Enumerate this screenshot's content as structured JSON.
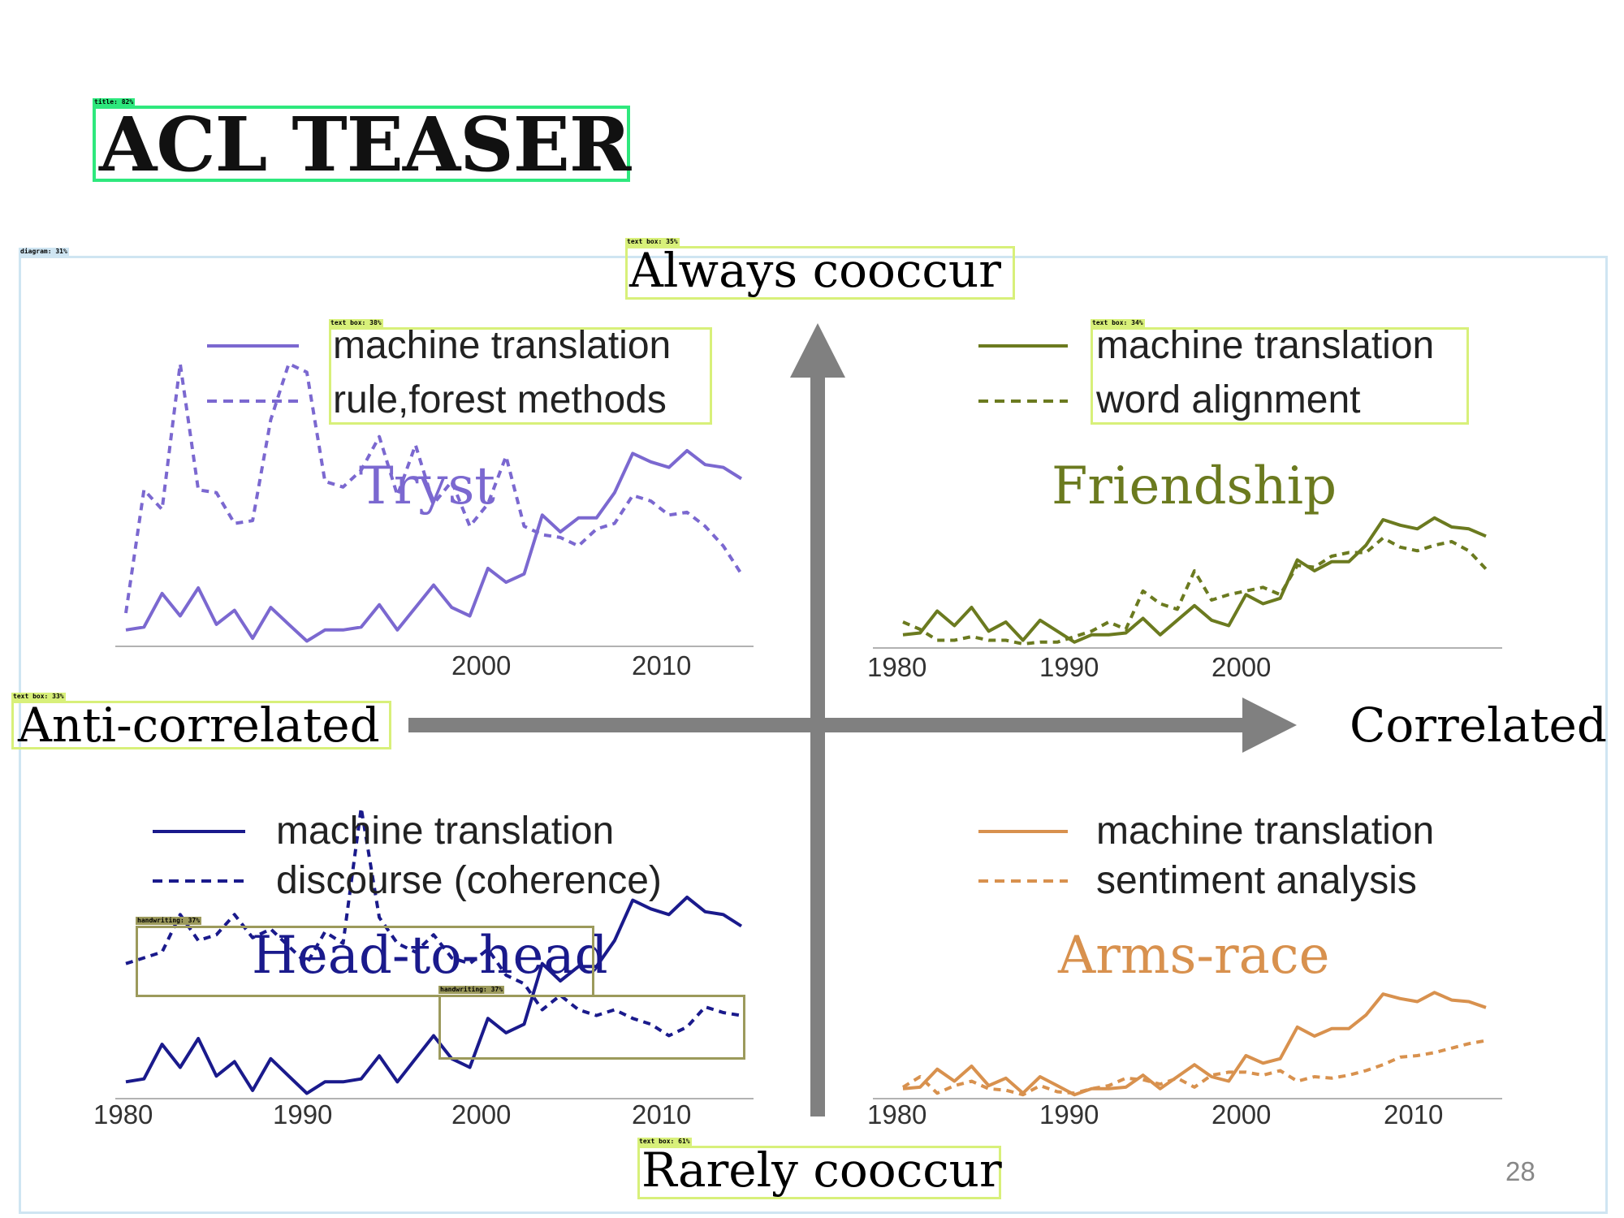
{
  "slide": {
    "title": "ACL TEASER",
    "page_number": "28"
  },
  "axes": {
    "top": "Always cooccur",
    "bottom": "Rarely cooccur",
    "left": "Anti-correlated",
    "right": "Correlated"
  },
  "detections": {
    "title": "title: 82%",
    "diagram": "diagram: 31%",
    "always": "text box: 35%",
    "tryst_legend": "text box: 38%",
    "friend_legend": "text box: 34%",
    "anti": "text box: 33%",
    "hw1": "handwriting: 37%",
    "hw2": "handwriting: 37%",
    "rarely": "text box: 61%"
  },
  "colors": {
    "tryst": "#7b68d0",
    "friendship": "#6b7a1f",
    "head": "#1a1a8c",
    "arms": "#d8914e",
    "axis_arrow": "#808080",
    "detect_green": "#2ee87d",
    "detect_lime": "#d8f07a",
    "detect_olive": "#9c9a5c",
    "detect_blue": "#cfe5f2"
  },
  "chart_data": [
    {
      "type": "line",
      "name": "Tryst",
      "title": "Tryst",
      "x_ticks": [
        "2000",
        "2010"
      ],
      "series": [
        {
          "name": "machine translation",
          "style": "solid",
          "x": [
            1980,
            1981,
            1982,
            1983,
            1984,
            1985,
            1986,
            1987,
            1988,
            1989,
            1990,
            1991,
            1992,
            1993,
            1994,
            1995,
            1996,
            1997,
            1998,
            1999,
            2000,
            2001,
            2002,
            2003,
            2004,
            2005,
            2006,
            2007,
            2008,
            2009,
            2010,
            2011,
            2012,
            2013,
            2014
          ],
          "y": [
            0.05,
            0.06,
            0.18,
            0.1,
            0.2,
            0.07,
            0.12,
            0.02,
            0.13,
            0.07,
            0.01,
            0.05,
            0.05,
            0.06,
            0.14,
            0.05,
            0.13,
            0.21,
            0.13,
            0.1,
            0.27,
            0.22,
            0.25,
            0.46,
            0.4,
            0.45,
            0.45,
            0.54,
            0.68,
            0.65,
            0.63,
            0.69,
            0.64,
            0.63,
            0.59
          ]
        },
        {
          "name": "rule,forest methods",
          "style": "dashed",
          "x": [
            1980,
            1981,
            1982,
            1983,
            1984,
            1985,
            1986,
            1987,
            1988,
            1989,
            1990,
            1991,
            1992,
            1993,
            1994,
            1995,
            1996,
            1997,
            1998,
            1999,
            2000,
            2001,
            2002,
            2003,
            2004,
            2005,
            2006,
            2007,
            2008,
            2009,
            2010,
            2011,
            2012,
            2013,
            2014
          ],
          "y": [
            0.11,
            0.55,
            0.48,
            1.0,
            0.55,
            0.54,
            0.43,
            0.44,
            0.8,
            1.0,
            0.97,
            0.58,
            0.56,
            0.62,
            0.74,
            0.53,
            0.71,
            0.5,
            0.58,
            0.42,
            0.5,
            0.67,
            0.42,
            0.39,
            0.38,
            0.35,
            0.41,
            0.43,
            0.53,
            0.51,
            0.46,
            0.47,
            0.42,
            0.35,
            0.25
          ]
        }
      ]
    },
    {
      "type": "line",
      "name": "Friendship",
      "title": "Friendship",
      "x_ticks": [
        "1980",
        "1990",
        "2000"
      ],
      "series": [
        {
          "name": "machine translation",
          "style": "solid",
          "x": [
            1980,
            1981,
            1982,
            1983,
            1984,
            1985,
            1986,
            1987,
            1988,
            1989,
            1990,
            1991,
            1992,
            1993,
            1994,
            1995,
            1996,
            1997,
            1998,
            1999,
            2000,
            2001,
            2002,
            2003,
            2004,
            2005,
            2006,
            2007,
            2008,
            2009,
            2010,
            2011,
            2012,
            2013,
            2014
          ],
          "y": [
            0.05,
            0.06,
            0.18,
            0.1,
            0.2,
            0.07,
            0.12,
            0.02,
            0.13,
            0.07,
            0.01,
            0.05,
            0.05,
            0.06,
            0.14,
            0.05,
            0.13,
            0.21,
            0.13,
            0.1,
            0.27,
            0.22,
            0.25,
            0.46,
            0.4,
            0.45,
            0.45,
            0.54,
            0.68,
            0.65,
            0.63,
            0.69,
            0.64,
            0.63,
            0.59
          ]
        },
        {
          "name": "word alignment",
          "style": "dashed",
          "x": [
            1980,
            1981,
            1982,
            1983,
            1984,
            1985,
            1986,
            1987,
            1988,
            1989,
            1990,
            1991,
            1992,
            1993,
            1994,
            1995,
            1996,
            1997,
            1998,
            1999,
            2000,
            2001,
            2002,
            2003,
            2004,
            2005,
            2006,
            2007,
            2008,
            2009,
            2010,
            2011,
            2012,
            2013,
            2014
          ],
          "y": [
            0.12,
            0.08,
            0.02,
            0.02,
            0.04,
            0.02,
            0.02,
            0.0,
            0.01,
            0.01,
            0.04,
            0.07,
            0.12,
            0.08,
            0.29,
            0.22,
            0.19,
            0.4,
            0.24,
            0.27,
            0.29,
            0.31,
            0.27,
            0.43,
            0.42,
            0.48,
            0.5,
            0.5,
            0.58,
            0.53,
            0.51,
            0.54,
            0.56,
            0.51,
            0.41
          ]
        }
      ]
    },
    {
      "type": "line",
      "name": "Head-to-head",
      "title": "Head-to-head",
      "x_ticks": [
        "1980",
        "1990",
        "2000",
        "2010"
      ],
      "series": [
        {
          "name": "machine translation",
          "style": "solid",
          "x": [
            1980,
            1981,
            1982,
            1983,
            1984,
            1985,
            1986,
            1987,
            1988,
            1989,
            1990,
            1991,
            1992,
            1993,
            1994,
            1995,
            1996,
            1997,
            1998,
            1999,
            2000,
            2001,
            2002,
            2003,
            2004,
            2005,
            2006,
            2007,
            2008,
            2009,
            2010,
            2011,
            2012,
            2013,
            2014
          ],
          "y": [
            0.05,
            0.06,
            0.18,
            0.1,
            0.2,
            0.07,
            0.12,
            0.02,
            0.13,
            0.07,
            0.01,
            0.05,
            0.05,
            0.06,
            0.14,
            0.05,
            0.13,
            0.21,
            0.13,
            0.1,
            0.27,
            0.22,
            0.25,
            0.46,
            0.4,
            0.45,
            0.45,
            0.54,
            0.68,
            0.65,
            0.63,
            0.69,
            0.64,
            0.63,
            0.59
          ]
        },
        {
          "name": "discourse (coherence)",
          "style": "dashed",
          "x": [
            1980,
            1981,
            1982,
            1983,
            1984,
            1985,
            1986,
            1987,
            1988,
            1989,
            1990,
            1991,
            1992,
            1993,
            1994,
            1995,
            1996,
            1997,
            1998,
            1999,
            2000,
            2001,
            2002,
            2003,
            2004,
            2005,
            2006,
            2007,
            2008,
            2009,
            2010,
            2011,
            2012,
            2013,
            2014
          ],
          "y": [
            0.46,
            0.48,
            0.5,
            0.63,
            0.54,
            0.56,
            0.63,
            0.55,
            0.58,
            0.52,
            0.46,
            0.57,
            0.53,
            1.0,
            0.62,
            0.53,
            0.5,
            0.56,
            0.48,
            0.46,
            0.51,
            0.42,
            0.39,
            0.3,
            0.35,
            0.3,
            0.28,
            0.3,
            0.27,
            0.25,
            0.21,
            0.24,
            0.31,
            0.29,
            0.28
          ]
        }
      ]
    },
    {
      "type": "line",
      "name": "Arms-race",
      "title": "Arms-race",
      "x_ticks": [
        "1980",
        "1990",
        "2000",
        "2010"
      ],
      "series": [
        {
          "name": "machine translation",
          "style": "solid",
          "x": [
            1980,
            1981,
            1982,
            1983,
            1984,
            1985,
            1986,
            1987,
            1988,
            1989,
            1990,
            1991,
            1992,
            1993,
            1994,
            1995,
            1996,
            1997,
            1998,
            1999,
            2000,
            2001,
            2002,
            2003,
            2004,
            2005,
            2006,
            2007,
            2008,
            2009,
            2010,
            2011,
            2012,
            2013,
            2014
          ],
          "y": [
            0.05,
            0.06,
            0.18,
            0.1,
            0.2,
            0.07,
            0.12,
            0.02,
            0.13,
            0.07,
            0.01,
            0.05,
            0.05,
            0.06,
            0.14,
            0.05,
            0.13,
            0.21,
            0.13,
            0.1,
            0.27,
            0.22,
            0.25,
            0.46,
            0.4,
            0.45,
            0.45,
            0.54,
            0.68,
            0.65,
            0.63,
            0.69,
            0.64,
            0.63,
            0.59
          ]
        },
        {
          "name": "sentiment analysis",
          "style": "dashed",
          "x": [
            1980,
            1981,
            1982,
            1983,
            1984,
            1985,
            1986,
            1987,
            1988,
            1989,
            1990,
            1991,
            1992,
            1993,
            1994,
            1995,
            1996,
            1997,
            1998,
            1999,
            2000,
            2001,
            2002,
            2003,
            2004,
            2005,
            2006,
            2007,
            2008,
            2009,
            2010,
            2011,
            2012,
            2013,
            2014
          ],
          "y": [
            0.06,
            0.13,
            0.02,
            0.07,
            0.1,
            0.05,
            0.04,
            0.01,
            0.07,
            0.03,
            0.02,
            0.05,
            0.07,
            0.12,
            0.11,
            0.08,
            0.12,
            0.06,
            0.14,
            0.16,
            0.16,
            0.14,
            0.17,
            0.1,
            0.13,
            0.12,
            0.14,
            0.17,
            0.21,
            0.26,
            0.27,
            0.29,
            0.32,
            0.35,
            0.37
          ]
        }
      ]
    }
  ]
}
